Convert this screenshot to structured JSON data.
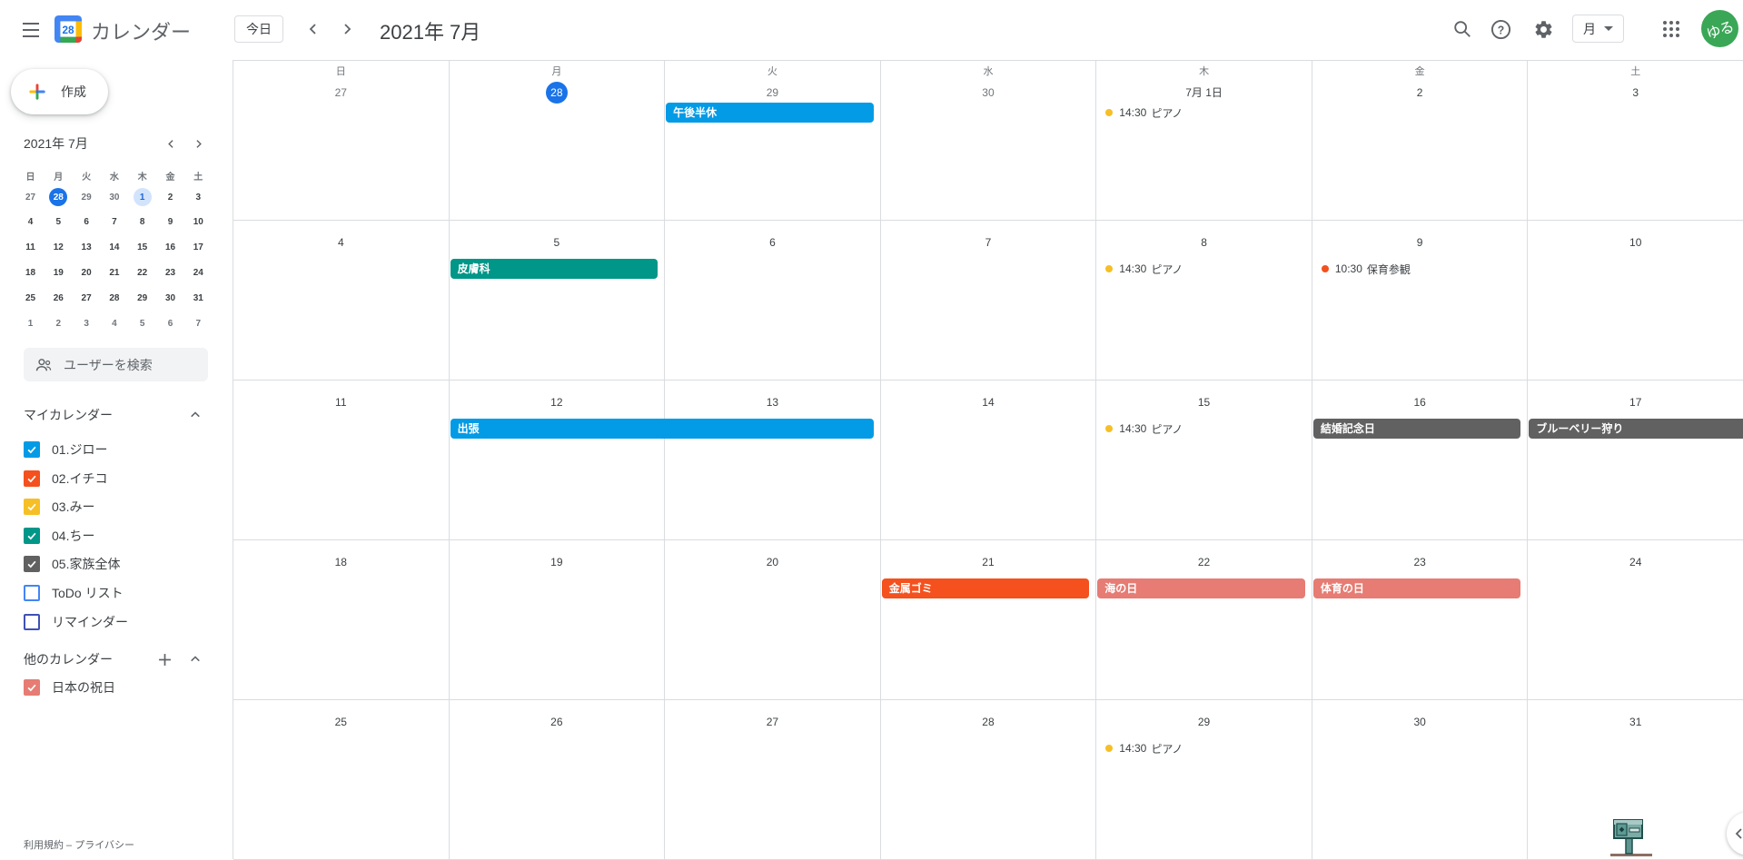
{
  "header": {
    "app_title": "カレンダー",
    "logo_day": "28",
    "today_label": "今日",
    "month_title": "2021年 7月",
    "view_label": "月",
    "avatar_text": "ゆる"
  },
  "sidebar": {
    "create_label": "作成",
    "mini_calendar": {
      "title": "2021年 7月",
      "weekdays": [
        "日",
        "月",
        "火",
        "水",
        "木",
        "金",
        "土"
      ],
      "weeks": [
        [
          {
            "d": "27",
            "m": 1
          },
          {
            "d": "28",
            "today": 1
          },
          {
            "d": "29",
            "m": 1
          },
          {
            "d": "30",
            "m": 1
          },
          {
            "d": "1",
            "sel": 1
          },
          {
            "d": "2"
          },
          {
            "d": "3"
          }
        ],
        [
          {
            "d": "4"
          },
          {
            "d": "5"
          },
          {
            "d": "6"
          },
          {
            "d": "7"
          },
          {
            "d": "8"
          },
          {
            "d": "9"
          },
          {
            "d": "10"
          }
        ],
        [
          {
            "d": "11"
          },
          {
            "d": "12"
          },
          {
            "d": "13"
          },
          {
            "d": "14"
          },
          {
            "d": "15"
          },
          {
            "d": "16"
          },
          {
            "d": "17"
          }
        ],
        [
          {
            "d": "18"
          },
          {
            "d": "19"
          },
          {
            "d": "20"
          },
          {
            "d": "21"
          },
          {
            "d": "22"
          },
          {
            "d": "23"
          },
          {
            "d": "24"
          }
        ],
        [
          {
            "d": "25"
          },
          {
            "d": "26"
          },
          {
            "d": "27"
          },
          {
            "d": "28"
          },
          {
            "d": "29"
          },
          {
            "d": "30"
          },
          {
            "d": "31"
          }
        ],
        [
          {
            "d": "1",
            "m": 1
          },
          {
            "d": "2",
            "m": 1
          },
          {
            "d": "3",
            "m": 1
          },
          {
            "d": "4",
            "m": 1
          },
          {
            "d": "5",
            "m": 1
          },
          {
            "d": "6",
            "m": 1
          },
          {
            "d": "7",
            "m": 1
          }
        ]
      ]
    },
    "search_placeholder": "ユーザーを検索",
    "my_calendars_label": "マイカレンダー",
    "my_calendars": [
      {
        "label": "01.ジロー",
        "color": "#039be5",
        "checked": true
      },
      {
        "label": "02.イチコ",
        "color": "#f4511e",
        "checked": true
      },
      {
        "label": "03.みー",
        "color": "#f6bf26",
        "checked": true
      },
      {
        "label": "04.ちー",
        "color": "#009688",
        "checked": true
      },
      {
        "label": "05.家族全体",
        "color": "#616161",
        "checked": true
      },
      {
        "label": "ToDo リスト",
        "color": "#4285f4",
        "checked": false
      },
      {
        "label": "リマインダー",
        "color": "#3f51b5",
        "checked": false
      }
    ],
    "other_calendars_label": "他のカレンダー",
    "other_calendars": [
      {
        "label": "日本の祝日",
        "color": "#e67c73",
        "checked": true
      }
    ],
    "footer": "利用規約 – プライバシー"
  },
  "calendar": {
    "weekday_headers": [
      "日",
      "月",
      "火",
      "水",
      "木",
      "金",
      "土"
    ],
    "weeks": [
      {
        "days": [
          {
            "d": "27",
            "m": 1
          },
          {
            "d": "28",
            "today": 1
          },
          {
            "d": "29",
            "m": 1
          },
          {
            "d": "30",
            "m": 1
          },
          {
            "d": "7月 1日"
          },
          {
            "d": "2"
          },
          {
            "d": "3"
          }
        ]
      },
      {
        "days": [
          {
            "d": "4"
          },
          {
            "d": "5"
          },
          {
            "d": "6"
          },
          {
            "d": "7"
          },
          {
            "d": "8"
          },
          {
            "d": "9"
          },
          {
            "d": "10"
          }
        ]
      },
      {
        "days": [
          {
            "d": "11"
          },
          {
            "d": "12"
          },
          {
            "d": "13"
          },
          {
            "d": "14"
          },
          {
            "d": "15"
          },
          {
            "d": "16"
          },
          {
            "d": "17"
          }
        ]
      },
      {
        "days": [
          {
            "d": "18"
          },
          {
            "d": "19"
          },
          {
            "d": "20"
          },
          {
            "d": "21"
          },
          {
            "d": "22"
          },
          {
            "d": "23"
          },
          {
            "d": "24"
          }
        ]
      },
      {
        "days": [
          {
            "d": "25"
          },
          {
            "d": "26"
          },
          {
            "d": "27"
          },
          {
            "d": "28"
          },
          {
            "d": "29"
          },
          {
            "d": "30"
          },
          {
            "d": "31"
          }
        ]
      }
    ],
    "events": [
      {
        "week": 0,
        "col": 2,
        "type": "bar",
        "label": "午後半休",
        "color": "#039be5"
      },
      {
        "week": 0,
        "col": 4,
        "type": "dot",
        "time": "14:30",
        "label": "ピアノ",
        "color": "#f6bf26"
      },
      {
        "week": 1,
        "col": 1,
        "type": "bar",
        "label": "皮膚科",
        "color": "#009688"
      },
      {
        "week": 1,
        "col": 4,
        "type": "dot",
        "time": "14:30",
        "label": "ピアノ",
        "color": "#f6bf26"
      },
      {
        "week": 1,
        "col": 5,
        "type": "dot",
        "time": "10:30",
        "label": "保育参観",
        "color": "#f4511e"
      },
      {
        "week": 2,
        "col": 1,
        "span": 2,
        "type": "bar",
        "label": "出張",
        "color": "#039be5"
      },
      {
        "week": 2,
        "col": 4,
        "type": "dot",
        "time": "14:30",
        "label": "ピアノ",
        "color": "#f6bf26"
      },
      {
        "week": 2,
        "col": 5,
        "type": "bar",
        "label": "結婚記念日",
        "color": "#616161"
      },
      {
        "week": 2,
        "col": 6,
        "type": "bar",
        "label": "ブルーベリー狩り",
        "color": "#616161",
        "flush_right": true
      },
      {
        "week": 3,
        "col": 3,
        "type": "bar",
        "label": "金属ゴミ",
        "color": "#f4511e"
      },
      {
        "week": 3,
        "col": 4,
        "type": "bar",
        "label": "海の日",
        "color": "#e67c73"
      },
      {
        "week": 3,
        "col": 5,
        "type": "bar",
        "label": "体育の日",
        "color": "#e67c73"
      },
      {
        "week": 4,
        "col": 4,
        "type": "dot",
        "time": "14:30",
        "label": "ピアノ",
        "color": "#f6bf26"
      }
    ]
  }
}
